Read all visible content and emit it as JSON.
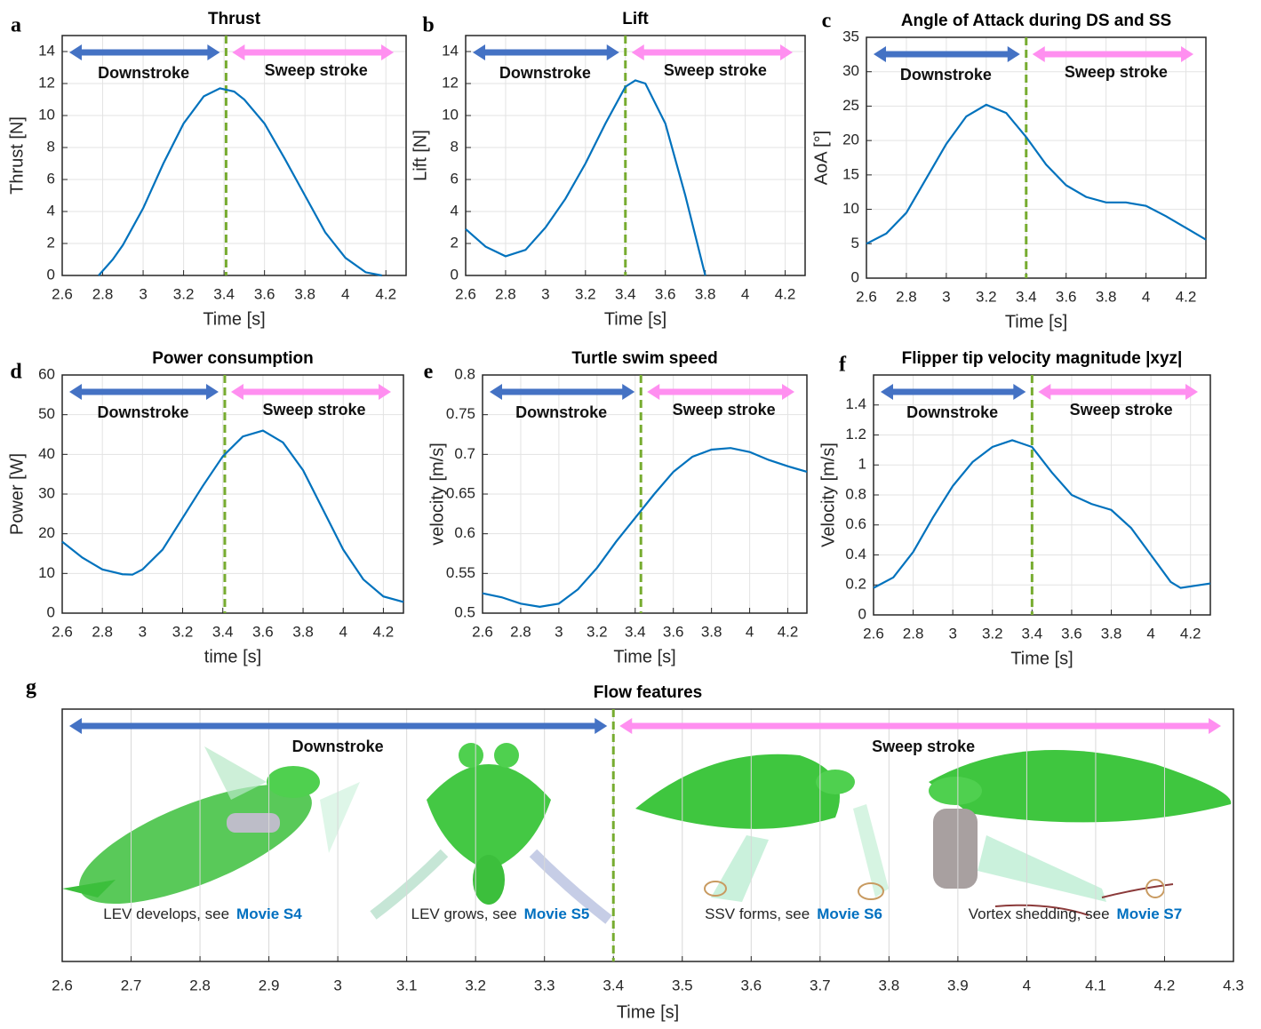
{
  "chart_data": [
    {
      "type": "line",
      "panel_label": "a",
      "title": "Thrust",
      "xlabel": "Time [s]",
      "ylabel": "Thrust [N]",
      "x": [
        2.78,
        2.85,
        2.9,
        3.0,
        3.1,
        3.2,
        3.3,
        3.38,
        3.45,
        3.5,
        3.6,
        3.7,
        3.8,
        3.9,
        4.0,
        4.1,
        4.18
      ],
      "series": [
        {
          "color": "#0072bd",
          "values": [
            0,
            1,
            1.9,
            4.2,
            7.0,
            9.5,
            11.2,
            11.7,
            11.5,
            11.0,
            9.5,
            7.3,
            5.0,
            2.7,
            1.1,
            0.2,
            0
          ]
        }
      ],
      "xlim": [
        2.6,
        4.3
      ],
      "ylim": [
        0,
        15
      ],
      "xticks": [
        2.6,
        2.8,
        3,
        3.2,
        3.4,
        3.6,
        3.8,
        4,
        4.2
      ],
      "yticks": [
        0,
        2,
        4,
        6,
        8,
        10,
        12,
        14
      ],
      "grid": true,
      "phase_boundary": 3.41,
      "phases": [
        {
          "label": "Downstroke",
          "color": "#4472c4"
        },
        {
          "label": "Sweep stroke",
          "color": "#ff8ff0"
        }
      ]
    },
    {
      "type": "line",
      "panel_label": "b",
      "title": "Lift",
      "xlabel": "Time [s]",
      "ylabel": "Lift [N]",
      "x": [
        2.6,
        2.7,
        2.8,
        2.9,
        3.0,
        3.1,
        3.2,
        3.3,
        3.4,
        3.45,
        3.5,
        3.6,
        3.7,
        3.8
      ],
      "series": [
        {
          "color": "#0072bd",
          "values": [
            2.9,
            1.8,
            1.2,
            1.6,
            3.0,
            4.8,
            7.0,
            9.5,
            11.8,
            12.2,
            12.0,
            9.5,
            5.0,
            0
          ]
        }
      ],
      "xlim": [
        2.6,
        4.3
      ],
      "ylim": [
        0,
        15
      ],
      "xticks": [
        2.6,
        2.8,
        3,
        3.2,
        3.4,
        3.6,
        3.8,
        4,
        4.2
      ],
      "yticks": [
        0,
        2,
        4,
        6,
        8,
        10,
        12,
        14
      ],
      "grid": true,
      "phase_boundary": 3.4,
      "phases": [
        {
          "label": "Downstroke",
          "color": "#4472c4"
        },
        {
          "label": "Sweep stroke",
          "color": "#ff8ff0"
        }
      ]
    },
    {
      "type": "line",
      "panel_label": "c",
      "title": "Angle of Attack during DS and SS",
      "xlabel": "Time [s]",
      "ylabel": "AoA [°]",
      "x": [
        2.6,
        2.7,
        2.8,
        2.9,
        3.0,
        3.1,
        3.2,
        3.3,
        3.4,
        3.5,
        3.6,
        3.7,
        3.8,
        3.9,
        4.0,
        4.1,
        4.2,
        4.3
      ],
      "series": [
        {
          "color": "#0072bd",
          "values": [
            5,
            6.5,
            9.5,
            14.5,
            19.5,
            23.5,
            25.2,
            24,
            20.5,
            16.5,
            13.5,
            11.8,
            11,
            11,
            10.5,
            9,
            7.3,
            5.6
          ]
        }
      ],
      "xlim": [
        2.6,
        4.3
      ],
      "ylim": [
        0,
        35
      ],
      "xticks": [
        2.6,
        2.8,
        3,
        3.2,
        3.4,
        3.6,
        3.8,
        4,
        4.2
      ],
      "yticks": [
        0,
        5,
        10,
        15,
        20,
        25,
        30,
        35
      ],
      "grid": true,
      "phase_boundary": 3.4,
      "phases": [
        {
          "label": "Downstroke",
          "color": "#4472c4"
        },
        {
          "label": "Sweep stroke",
          "color": "#ff8ff0"
        }
      ]
    },
    {
      "type": "line",
      "panel_label": "d",
      "title": "Power consumption",
      "xlabel": "time [s]",
      "ylabel": "Power [W]",
      "x": [
        2.6,
        2.7,
        2.8,
        2.9,
        2.95,
        3.0,
        3.1,
        3.2,
        3.3,
        3.4,
        3.5,
        3.6,
        3.7,
        3.8,
        3.9,
        4.0,
        4.1,
        4.2,
        4.3
      ],
      "series": [
        {
          "color": "#0072bd",
          "values": [
            18,
            14,
            11,
            9.8,
            9.7,
            11,
            16,
            24,
            32,
            39.5,
            44.5,
            46,
            43,
            36,
            26,
            16,
            8.5,
            4.2,
            2.8
          ]
        }
      ],
      "xlim": [
        2.6,
        4.3
      ],
      "ylim": [
        0,
        60
      ],
      "xticks": [
        2.6,
        2.8,
        3,
        3.2,
        3.4,
        3.6,
        3.8,
        4,
        4.2
      ],
      "yticks": [
        0,
        10,
        20,
        30,
        40,
        50,
        60
      ],
      "grid": true,
      "phase_boundary": 3.41,
      "phases": [
        {
          "label": "Downstroke",
          "color": "#4472c4"
        },
        {
          "label": "Sweep stroke",
          "color": "#ff8ff0"
        }
      ]
    },
    {
      "type": "line",
      "panel_label": "e",
      "title": "Turtle swim speed",
      "xlabel": "Time [s]",
      "ylabel": "velocity [m/s]",
      "x": [
        2.6,
        2.7,
        2.8,
        2.9,
        3.0,
        3.1,
        3.2,
        3.3,
        3.4,
        3.5,
        3.6,
        3.7,
        3.8,
        3.9,
        4.0,
        4.1,
        4.2,
        4.3
      ],
      "series": [
        {
          "color": "#0072bd",
          "values": [
            0.525,
            0.52,
            0.512,
            0.508,
            0.512,
            0.53,
            0.557,
            0.59,
            0.62,
            0.65,
            0.678,
            0.697,
            0.706,
            0.708,
            0.703,
            0.693,
            0.685,
            0.678
          ]
        }
      ],
      "xlim": [
        2.6,
        4.3
      ],
      "ylim": [
        0.5,
        0.8
      ],
      "xticks": [
        2.6,
        2.8,
        3,
        3.2,
        3.4,
        3.6,
        3.8,
        4,
        4.2
      ],
      "yticks": [
        0.5,
        0.55,
        0.6,
        0.65,
        0.7,
        0.75,
        0.8
      ],
      "grid": true,
      "phase_boundary": 3.43,
      "phases": [
        {
          "label": "Downstroke",
          "color": "#4472c4"
        },
        {
          "label": "Sweep stroke",
          "color": "#ff8ff0"
        }
      ]
    },
    {
      "type": "line",
      "panel_label": "f",
      "title": "Flipper tip velocity magnitude |xyz|",
      "xlabel": "Time [s]",
      "ylabel": "Velocity [m/s]",
      "x": [
        2.6,
        2.7,
        2.8,
        2.9,
        3.0,
        3.1,
        3.2,
        3.3,
        3.4,
        3.5,
        3.6,
        3.7,
        3.8,
        3.9,
        4.0,
        4.1,
        4.15,
        4.2,
        4.3
      ],
      "series": [
        {
          "color": "#0072bd",
          "values": [
            0.18,
            0.25,
            0.42,
            0.65,
            0.86,
            1.02,
            1.12,
            1.165,
            1.12,
            0.95,
            0.8,
            0.74,
            0.7,
            0.58,
            0.4,
            0.22,
            0.18,
            0.19,
            0.21
          ]
        }
      ],
      "xlim": [
        2.6,
        4.3
      ],
      "ylim": [
        0,
        1.6
      ],
      "xticks": [
        2.6,
        2.8,
        3,
        3.2,
        3.4,
        3.6,
        3.8,
        4,
        4.2
      ],
      "yticks": [
        0,
        0.2,
        0.4,
        0.6,
        0.8,
        1,
        1.2,
        1.4
      ],
      "grid": true,
      "phase_boundary": 3.4,
      "phases": [
        {
          "label": "Downstroke",
          "color": "#4472c4"
        },
        {
          "label": "Sweep stroke",
          "color": "#ff8ff0"
        }
      ]
    },
    {
      "type": "timeline",
      "panel_label": "g",
      "title": "Flow features",
      "xlabel": "Time [s]",
      "xlim": [
        2.6,
        4.3
      ],
      "xticks": [
        2.6,
        2.7,
        2.8,
        2.9,
        3,
        3.1,
        3.2,
        3.3,
        3.4,
        3.5,
        3.6,
        3.7,
        3.8,
        3.9,
        4,
        4.1,
        4.2,
        4.3
      ],
      "grid": true,
      "phase_boundary": 3.4,
      "phases": [
        {
          "label": "Downstroke",
          "color": "#4472c4"
        },
        {
          "label": "Sweep stroke",
          "color": "#ff8ff0"
        }
      ],
      "captions": [
        {
          "text": "LEV develops, see",
          "link": "Movie S4"
        },
        {
          "text": "LEV grows, see",
          "link": "Movie S5"
        },
        {
          "text": "SSV forms, see",
          "link": "Movie S6"
        },
        {
          "text": "Vortex shedding, see",
          "link": "Movie S7"
        }
      ]
    }
  ]
}
